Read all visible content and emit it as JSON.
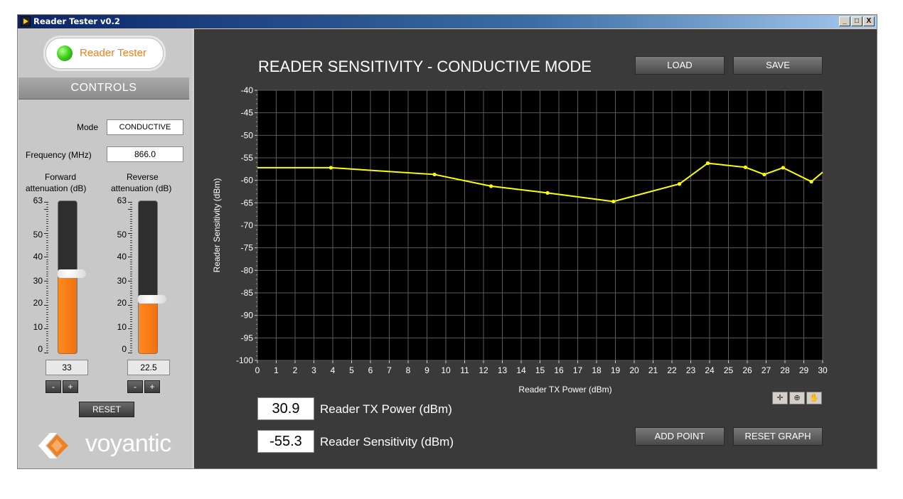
{
  "window": {
    "title": "Reader Tester v0.2",
    "controls": [
      "_",
      "□",
      "X"
    ]
  },
  "left": {
    "logo_text": "Reader Tester",
    "controls_header": "CONTROLS",
    "mode_label": "Mode",
    "mode_value": "CONDUCTIVE",
    "frequency_label": "Frequency (MHz)",
    "frequency_value": "866.0",
    "forward_label_1": "Forward",
    "forward_label_2": "attenuation (dB)",
    "reverse_label_1": "Reverse",
    "reverse_label_2": "attenuation (dB)",
    "scale_labels": [
      "63",
      "50",
      "40",
      "30",
      "20",
      "10",
      "0"
    ],
    "forward_value": "33",
    "reverse_value": "22.5",
    "forward_level": 33,
    "reverse_level": 22.5,
    "slider_max": 63,
    "minus": "-",
    "plus": "+",
    "reset_label": "RESET",
    "brand": "voyantic"
  },
  "right": {
    "title": "READER SENSITIVITY - CONDUCTIVE MODE",
    "load_label": "LOAD",
    "save_label": "SAVE",
    "tx_power_value": "30.9",
    "tx_power_label": "Reader TX Power (dBm)",
    "sensitivity_value": "-55.3",
    "sensitivity_label": "Reader Sensitivity (dBm)",
    "add_point_label": "ADD POINT",
    "reset_graph_label": "RESET GRAPH",
    "tool_icons": [
      "crosshair-icon",
      "zoom-icon",
      "pan-hand-icon"
    ]
  },
  "chart_data": {
    "type": "line",
    "xlabel": "Reader TX Power (dBm)",
    "ylabel": "Reader Sensitivity (dBm)",
    "xlim": [
      0,
      30
    ],
    "ylim": [
      -100,
      -40
    ],
    "xticks": [
      0,
      1,
      2,
      3,
      4,
      5,
      6,
      7,
      8,
      9,
      10,
      11,
      12,
      13,
      14,
      15,
      16,
      17,
      18,
      19,
      20,
      21,
      22,
      23,
      24,
      25,
      26,
      27,
      28,
      29,
      30
    ],
    "yticks": [
      -40,
      -45,
      -50,
      -55,
      -60,
      -65,
      -70,
      -75,
      -80,
      -85,
      -90,
      -95,
      -100
    ],
    "grid": true,
    "line_color": "#ffff00",
    "background": "#000000",
    "series": [
      {
        "x": [
          0,
          3.9,
          9.4,
          12.4,
          15.4,
          18.9,
          22.4,
          23.9,
          25.9,
          26.9,
          27.9,
          29.4,
          30
        ],
        "y": [
          -57.2,
          -57.2,
          -58.7,
          -61.3,
          -62.8,
          -64.7,
          -60.8,
          -56.2,
          -57.1,
          -58.7,
          -57.2,
          -60.3,
          -58.2
        ]
      }
    ]
  }
}
